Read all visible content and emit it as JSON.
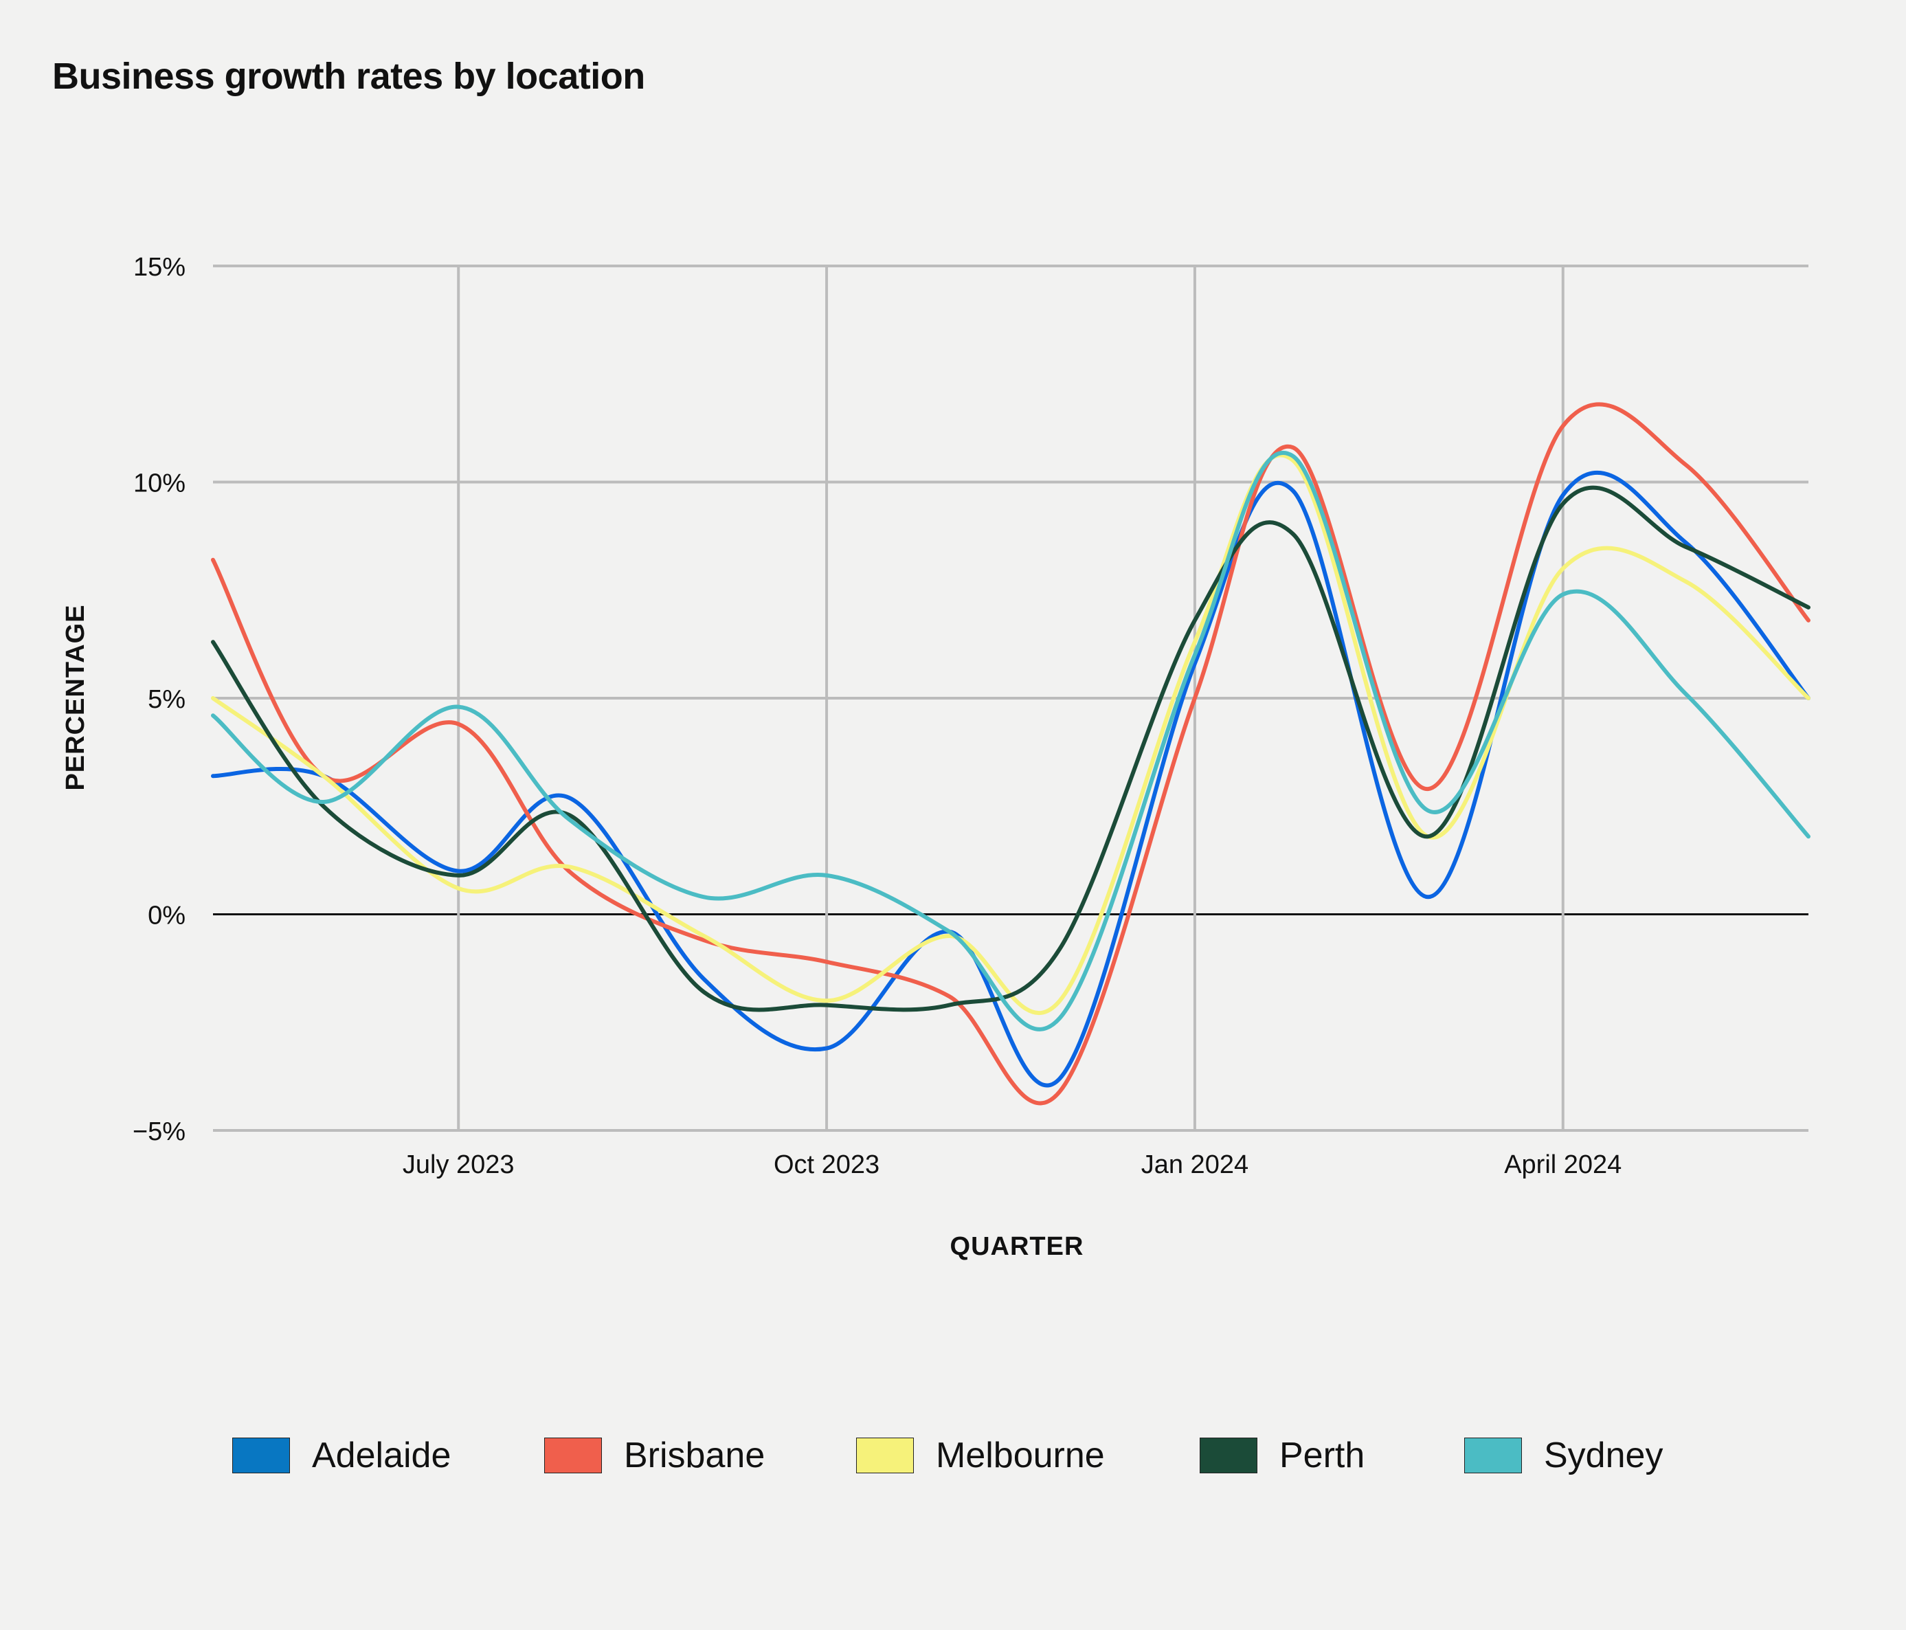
{
  "title": "Business growth rates by location",
  "chart_data": {
    "type": "line",
    "title": "Business growth rates by location",
    "xlabel": "QUARTER",
    "ylabel": "PERCENTAGE",
    "ylim": [
      -5,
      15
    ],
    "yticks": [
      15,
      10,
      5,
      0,
      -5
    ],
    "ytick_labels": [
      "15%",
      "10%",
      "5%",
      "0%",
      "−5%"
    ],
    "xticks": [
      {
        "label": "July 2023",
        "x": 1
      },
      {
        "label": "Oct 2023",
        "x": 4
      },
      {
        "label": "Jan 2024",
        "x": 7
      },
      {
        "label": "April 2024",
        "x": 10
      }
    ],
    "x_range": [
      -1,
      12
    ],
    "x": [
      -1,
      -0.1,
      1,
      1.9,
      3,
      4,
      5,
      5.9,
      7,
      7.8,
      8.9,
      10,
      11,
      12
    ],
    "grid": true,
    "legend_position": "bottom",
    "series": [
      {
        "name": "Adelaide",
        "color": "#0b65e2",
        "legend_color": "#0877c2",
        "values": [
          3.2,
          3.2,
          1.0,
          2.7,
          -1.5,
          -3.1,
          -0.4,
          -3.8,
          5.8,
          9.8,
          0.4,
          9.7,
          8.6,
          5.0
        ]
      },
      {
        "name": "Brisbane",
        "color": "#f05f4c",
        "legend_color": "#f05f4c",
        "values": [
          8.2,
          3.2,
          4.4,
          1.0,
          -0.6,
          -1.1,
          -1.9,
          -4.1,
          5.0,
          10.8,
          2.9,
          11.3,
          10.4,
          6.8
        ]
      },
      {
        "name": "Melbourne",
        "color": "#f6f27a",
        "legend_color": "#f6f27a",
        "values": [
          5.0,
          3.2,
          0.6,
          1.1,
          -0.5,
          -2.0,
          -0.5,
          -2.0,
          6.3,
          10.5,
          1.8,
          8.0,
          7.7,
          5.0
        ]
      },
      {
        "name": "Perth",
        "color": "#1b4b38",
        "legend_color": "#1b4b38",
        "values": [
          6.3,
          2.5,
          0.9,
          2.3,
          -1.8,
          -2.1,
          -2.1,
          -0.8,
          6.8,
          8.8,
          1.8,
          9.5,
          8.5,
          7.1
        ]
      },
      {
        "name": "Sydney",
        "color": "#4bbcc4",
        "legend_color": "#4bbcc4",
        "values": [
          4.6,
          2.6,
          4.8,
          2.2,
          0.4,
          0.9,
          -0.4,
          -2.4,
          6.0,
          10.6,
          2.4,
          7.4,
          5.1,
          1.8
        ]
      }
    ]
  }
}
